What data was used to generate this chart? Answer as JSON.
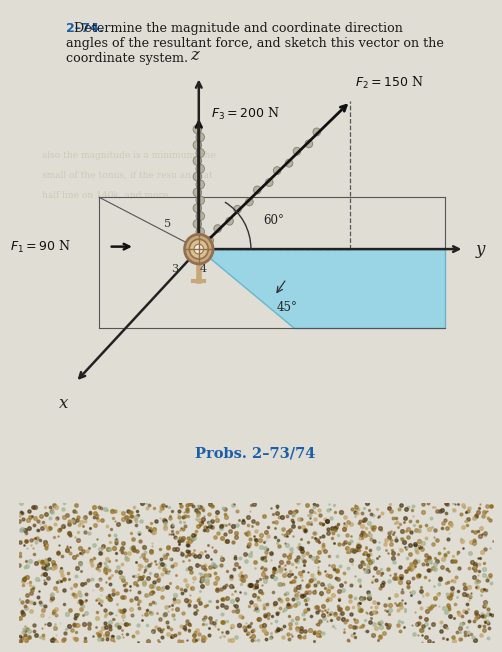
{
  "page_bg_top": "#e8e4dc",
  "page_bg": "#e0ddd5",
  "wood_color": "#6b4c2a",
  "title_number": "2–74.",
  "title_body": "  Determine the magnitude and coordinate direction\nangles of the resultant force, and sketch this vector on the\ncoordinate system.",
  "title_number_color": "#1a5fa8",
  "title_text_color": "#1a1a1a",
  "prob_label": "Probs. 2–73/74",
  "prob_label_color": "#1a5fa8",
  "axis_color": "#222222",
  "blue_fill_color": "#8dd4e8",
  "blue_edge_color": "#5ab0c8",
  "chain_color": "#a09070",
  "chain_edge": "#706050",
  "pulley_color": "#c8a878",
  "F1_label": "$F_1 = 90$ N",
  "F2_label": "$F_2 = 150$ N",
  "F3_label": "$F_3 = 200$ N",
  "angle1_label": "60°",
  "angle2_label": "45°",
  "dim_5": "5",
  "dim_3": "3",
  "dim_4": "4",
  "ox": 0.38,
  "oy": 0.515
}
